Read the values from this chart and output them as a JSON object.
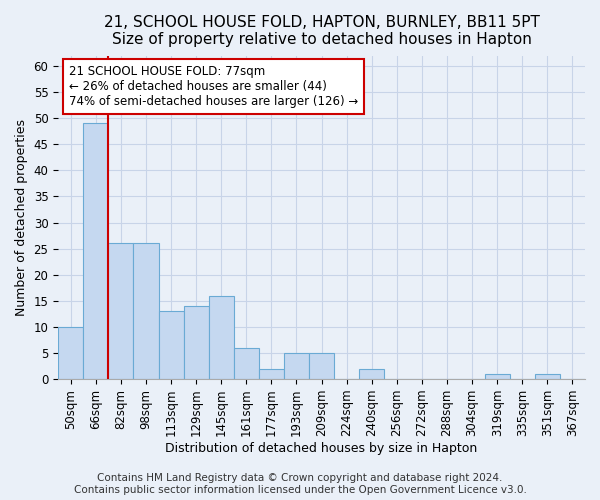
{
  "title": "21, SCHOOL HOUSE FOLD, HAPTON, BURNLEY, BB11 5PT",
  "subtitle": "Size of property relative to detached houses in Hapton",
  "xlabel": "Distribution of detached houses by size in Hapton",
  "ylabel": "Number of detached properties",
  "bin_labels": [
    "50sqm",
    "66sqm",
    "82sqm",
    "98sqm",
    "113sqm",
    "129sqm",
    "145sqm",
    "161sqm",
    "177sqm",
    "193sqm",
    "209sqm",
    "224sqm",
    "240sqm",
    "256sqm",
    "272sqm",
    "288sqm",
    "304sqm",
    "319sqm",
    "335sqm",
    "351sqm",
    "367sqm"
  ],
  "bar_values": [
    10,
    49,
    26,
    26,
    13,
    14,
    16,
    6,
    2,
    5,
    5,
    0,
    2,
    0,
    0,
    0,
    0,
    1,
    0,
    1,
    0
  ],
  "bar_color": "#c5d8f0",
  "bar_edge_color": "#6aaad4",
  "ylim": [
    0,
    62
  ],
  "yticks": [
    0,
    5,
    10,
    15,
    20,
    25,
    30,
    35,
    40,
    45,
    50,
    55,
    60
  ],
  "property_line_x": 2.0,
  "property_line_color": "#cc0000",
  "annotation_text": "21 SCHOOL HOUSE FOLD: 77sqm\n← 26% of detached houses are smaller (44)\n74% of semi-detached houses are larger (126) →",
  "annotation_box_color": "#ffffff",
  "annotation_box_edge_color": "#cc0000",
  "footer_line1": "Contains HM Land Registry data © Crown copyright and database right 2024.",
  "footer_line2": "Contains public sector information licensed under the Open Government Licence v3.0.",
  "background_color": "#eaf0f8",
  "plot_background_color": "#eaf0f8",
  "grid_color": "#c8d4e8",
  "title_fontsize": 11,
  "axis_label_fontsize": 9,
  "tick_fontsize": 8.5,
  "annotation_fontsize": 8.5,
  "footer_fontsize": 7.5
}
